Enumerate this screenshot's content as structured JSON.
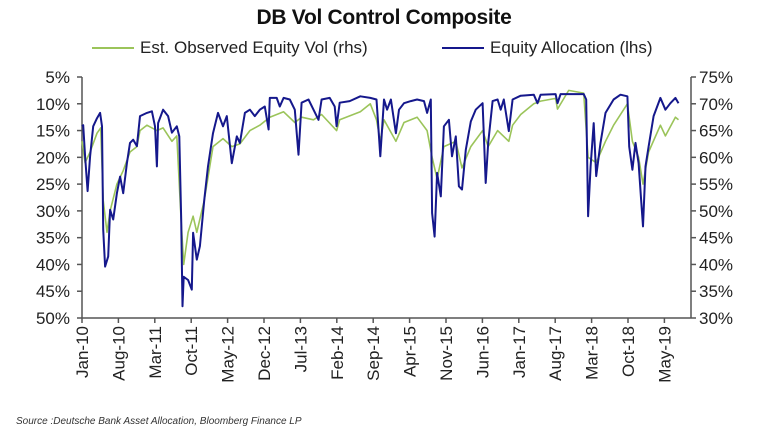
{
  "chart_data": {
    "type": "line",
    "title": "DB Vol Control Composite",
    "source": "Source :Deutsche Bank Asset Allocation, Bloomberg Finance LP",
    "colors": {
      "est_vol": "#9bc45a",
      "equity_allocation": "#15188c"
    },
    "legend_position": "top",
    "grid": false,
    "left_axis": {
      "ticks": [
        "5%",
        "10%",
        "15%",
        "20%",
        "25%",
        "30%",
        "35%",
        "40%",
        "45%",
        "50%"
      ],
      "range": [
        5,
        50
      ],
      "inverted": true
    },
    "right_axis": {
      "ticks": [
        "75%",
        "70%",
        "65%",
        "60%",
        "55%",
        "50%",
        "45%",
        "40%",
        "35%",
        "30%"
      ],
      "range": [
        30,
        75
      ]
    },
    "x_axis": {
      "ticks": [
        "Jan-10",
        "Aug-10",
        "Mar-11",
        "Oct-11",
        "May-12",
        "Dec-12",
        "Jul-13",
        "Feb-14",
        "Sep-14",
        "Apr-15",
        "Nov-15",
        "Jun-16",
        "Jan-17",
        "Aug-17",
        "Mar-18",
        "Oct-18",
        "May-19"
      ],
      "range": [
        2010.0,
        2019.6
      ]
    },
    "series": [
      {
        "name": "Est. Observed Equity Vol (rhs)",
        "axis": "right",
        "points": [
          [
            2010.0,
            63
          ],
          [
            2010.05,
            59
          ],
          [
            2010.13,
            61
          ],
          [
            2010.24,
            64.5
          ],
          [
            2010.3,
            65.5
          ],
          [
            2010.34,
            52
          ],
          [
            2010.4,
            46
          ],
          [
            2010.45,
            50
          ],
          [
            2010.56,
            55
          ],
          [
            2010.66,
            57.5
          ],
          [
            2010.77,
            61
          ],
          [
            2010.88,
            62
          ],
          [
            2010.93,
            65
          ],
          [
            2011.04,
            66
          ],
          [
            2011.2,
            65
          ],
          [
            2011.3,
            65.5
          ],
          [
            2011.44,
            63
          ],
          [
            2011.52,
            64
          ],
          [
            2011.59,
            48
          ],
          [
            2011.63,
            40
          ],
          [
            2011.7,
            46
          ],
          [
            2011.78,
            49
          ],
          [
            2011.84,
            46
          ],
          [
            2011.96,
            52
          ],
          [
            2012.1,
            62
          ],
          [
            2012.26,
            63.5
          ],
          [
            2012.4,
            62
          ],
          [
            2012.53,
            62.5
          ],
          [
            2012.69,
            65
          ],
          [
            2012.85,
            66
          ],
          [
            2013.01,
            67.5
          ],
          [
            2013.23,
            68.5
          ],
          [
            2013.41,
            66.5
          ],
          [
            2013.52,
            67.5
          ],
          [
            2013.71,
            67
          ],
          [
            2013.84,
            68
          ],
          [
            2014.08,
            65
          ],
          [
            2014.13,
            67
          ],
          [
            2014.46,
            68.5
          ],
          [
            2014.62,
            70
          ],
          [
            2014.72,
            67
          ],
          [
            2014.78,
            63
          ],
          [
            2014.84,
            67
          ],
          [
            2015.03,
            63
          ],
          [
            2015.16,
            66.5
          ],
          [
            2015.37,
            67.5
          ],
          [
            2015.53,
            65
          ],
          [
            2015.61,
            60
          ],
          [
            2015.69,
            56
          ],
          [
            2015.8,
            62
          ],
          [
            2015.99,
            63
          ],
          [
            2016.09,
            58
          ],
          [
            2016.23,
            62
          ],
          [
            2016.42,
            65
          ],
          [
            2016.51,
            62
          ],
          [
            2016.66,
            65
          ],
          [
            2016.84,
            63
          ],
          [
            2016.9,
            66
          ],
          [
            2017.03,
            68
          ],
          [
            2017.24,
            70
          ],
          [
            2017.35,
            70.5
          ],
          [
            2017.59,
            71
          ],
          [
            2017.62,
            69
          ],
          [
            2017.8,
            72.5
          ],
          [
            2018.04,
            72
          ],
          [
            2018.11,
            60
          ],
          [
            2018.24,
            59
          ],
          [
            2018.39,
            63
          ],
          [
            2018.52,
            66
          ],
          [
            2018.74,
            70
          ],
          [
            2018.82,
            63
          ],
          [
            2018.92,
            60
          ],
          [
            2018.99,
            55
          ],
          [
            2019.08,
            61
          ],
          [
            2019.27,
            66
          ],
          [
            2019.35,
            64
          ],
          [
            2019.51,
            67.5
          ],
          [
            2019.56,
            67
          ]
        ]
      },
      {
        "name": "Equity Allocation (lhs)",
        "axis": "left",
        "points": [
          [
            2010.0,
            14.2
          ],
          [
            2010.02,
            14
          ],
          [
            2010.05,
            19.8
          ],
          [
            2010.09,
            26.3
          ],
          [
            2010.13,
            19.8
          ],
          [
            2010.18,
            14.2
          ],
          [
            2010.24,
            12.7
          ],
          [
            2010.29,
            11.7
          ],
          [
            2010.32,
            14.2
          ],
          [
            2010.34,
            33.5
          ],
          [
            2010.37,
            40.4
          ],
          [
            2010.42,
            38.5
          ],
          [
            2010.45,
            29.8
          ],
          [
            2010.5,
            31.6
          ],
          [
            2010.56,
            26.7
          ],
          [
            2010.61,
            23.6
          ],
          [
            2010.66,
            26.7
          ],
          [
            2010.72,
            21.1
          ],
          [
            2010.77,
            17.3
          ],
          [
            2010.82,
            16.7
          ],
          [
            2010.88,
            17.9
          ],
          [
            2010.93,
            12.3
          ],
          [
            2011.04,
            11.7
          ],
          [
            2011.12,
            11.4
          ],
          [
            2011.17,
            14.2
          ],
          [
            2011.2,
            21.7
          ],
          [
            2011.22,
            13.6
          ],
          [
            2011.3,
            11.1
          ],
          [
            2011.38,
            12.3
          ],
          [
            2011.44,
            15.4
          ],
          [
            2011.52,
            14.2
          ],
          [
            2011.56,
            16.1
          ],
          [
            2011.59,
            31.6
          ],
          [
            2011.61,
            47.8
          ],
          [
            2011.63,
            42.3
          ],
          [
            2011.7,
            42.9
          ],
          [
            2011.76,
            44.7
          ],
          [
            2011.78,
            34.1
          ],
          [
            2011.84,
            39.1
          ],
          [
            2011.89,
            36.6
          ],
          [
            2011.96,
            27.9
          ],
          [
            2012.02,
            21.7
          ],
          [
            2012.1,
            15.5
          ],
          [
            2012.18,
            11.7
          ],
          [
            2012.26,
            14.2
          ],
          [
            2012.32,
            12.3
          ],
          [
            2012.4,
            21.1
          ],
          [
            2012.48,
            16.1
          ],
          [
            2012.53,
            17.3
          ],
          [
            2012.61,
            11.7
          ],
          [
            2012.69,
            11.1
          ],
          [
            2012.77,
            12.3
          ],
          [
            2012.85,
            11.1
          ],
          [
            2012.93,
            10.5
          ],
          [
            2012.99,
            14.8
          ],
          [
            2013.01,
            8.9
          ],
          [
            2013.12,
            8.9
          ],
          [
            2013.17,
            10.5
          ],
          [
            2013.23,
            8.9
          ],
          [
            2013.33,
            9.2
          ],
          [
            2013.41,
            11.1
          ],
          [
            2013.47,
            19.5
          ],
          [
            2013.52,
            9.8
          ],
          [
            2013.63,
            9.2
          ],
          [
            2013.71,
            11.1
          ],
          [
            2013.79,
            13
          ],
          [
            2013.84,
            9.2
          ],
          [
            2013.97,
            8.9
          ],
          [
            2014.05,
            10.5
          ],
          [
            2014.08,
            14.2
          ],
          [
            2014.13,
            9.8
          ],
          [
            2014.29,
            9.5
          ],
          [
            2014.46,
            8.6
          ],
          [
            2014.62,
            8.9
          ],
          [
            2014.72,
            9.2
          ],
          [
            2014.78,
            19.8
          ],
          [
            2014.84,
            9.2
          ],
          [
            2014.89,
            11.1
          ],
          [
            2014.95,
            9.2
          ],
          [
            2015.03,
            15.5
          ],
          [
            2015.08,
            11.1
          ],
          [
            2015.16,
            9.9
          ],
          [
            2015.27,
            9.5
          ],
          [
            2015.37,
            9.2
          ],
          [
            2015.48,
            9.5
          ],
          [
            2015.53,
            11.7
          ],
          [
            2015.59,
            9.2
          ],
          [
            2015.61,
            30.4
          ],
          [
            2015.65,
            34.8
          ],
          [
            2015.69,
            22.9
          ],
          [
            2015.75,
            27.3
          ],
          [
            2015.8,
            14.2
          ],
          [
            2015.88,
            13
          ],
          [
            2015.93,
            19.8
          ],
          [
            2015.99,
            16.1
          ],
          [
            2016.04,
            25.4
          ],
          [
            2016.09,
            26
          ],
          [
            2016.15,
            18.6
          ],
          [
            2016.23,
            13.3
          ],
          [
            2016.31,
            11.1
          ],
          [
            2016.42,
            9.9
          ],
          [
            2016.47,
            24.8
          ],
          [
            2016.51,
            17.3
          ],
          [
            2016.58,
            9.5
          ],
          [
            2016.66,
            9.2
          ],
          [
            2016.71,
            11.1
          ],
          [
            2016.76,
            9.2
          ],
          [
            2016.84,
            15.1
          ],
          [
            2016.9,
            9.2
          ],
          [
            2017.03,
            8.5
          ],
          [
            2017.24,
            8.3
          ],
          [
            2017.3,
            9.9
          ],
          [
            2017.35,
            8.3
          ],
          [
            2017.59,
            8.2
          ],
          [
            2017.62,
            9.9
          ],
          [
            2017.67,
            8.2
          ],
          [
            2018.04,
            8.2
          ],
          [
            2018.08,
            9.2
          ],
          [
            2018.11,
            31
          ],
          [
            2018.15,
            21.7
          ],
          [
            2018.2,
            13.6
          ],
          [
            2018.24,
            23.5
          ],
          [
            2018.31,
            17.3
          ],
          [
            2018.39,
            11.7
          ],
          [
            2018.52,
            9.2
          ],
          [
            2018.63,
            8.3
          ],
          [
            2018.74,
            8.6
          ],
          [
            2018.77,
            18
          ],
          [
            2018.82,
            22.3
          ],
          [
            2018.87,
            17.3
          ],
          [
            2018.92,
            21.1
          ],
          [
            2018.96,
            27.9
          ],
          [
            2018.99,
            32.9
          ],
          [
            2019.03,
            21.7
          ],
          [
            2019.08,
            18
          ],
          [
            2019.16,
            12.3
          ],
          [
            2019.27,
            8.9
          ],
          [
            2019.35,
            11.1
          ],
          [
            2019.43,
            9.9
          ],
          [
            2019.51,
            8.9
          ],
          [
            2019.56,
            9.9
          ]
        ]
      }
    ]
  }
}
